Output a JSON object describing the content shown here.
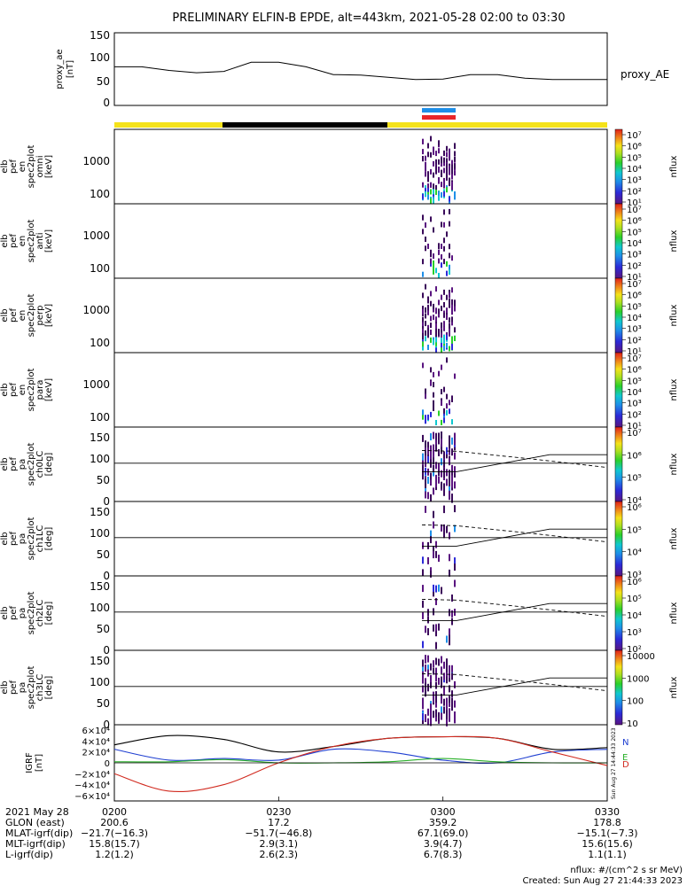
{
  "title": "PRELIMINARY ELFIN-B EPDE, alt=443km, 2021-05-28 02:00 to 03:30",
  "time_ticks": [
    "0200",
    "0230",
    "0300",
    "0330"
  ],
  "panels": {
    "ae": {
      "ylabel": [
        "proxy_ae",
        "[nT]"
      ],
      "legend": "proxy_AE",
      "yticks": [
        "150",
        "100",
        "50",
        "0"
      ]
    },
    "en_omni": {
      "ylabel": [
        "elb",
        "pef",
        "en",
        "spec2plot",
        "omni",
        "[keV]"
      ],
      "yticks": [
        "1000",
        "100"
      ]
    },
    "en_anti": {
      "ylabel": [
        "elb",
        "pef",
        "en",
        "spec2plot",
        "anti",
        "[keV]"
      ],
      "yticks": [
        "1000",
        "100"
      ]
    },
    "en_perp": {
      "ylabel": [
        "elb",
        "pef",
        "en",
        "spec2plot",
        "perp",
        "[keV]"
      ],
      "yticks": [
        "1000",
        "100"
      ]
    },
    "en_para": {
      "ylabel": [
        "elb",
        "pef",
        "en",
        "spec2plot",
        "para",
        "[keV]"
      ],
      "yticks": [
        "1000",
        "100"
      ]
    },
    "pa_ch0": {
      "ylabel": [
        "elb",
        "pef",
        "pa",
        "spec2plot",
        "ch0LC",
        "[deg]"
      ],
      "yticks": [
        "150",
        "100",
        "50",
        "0"
      ]
    },
    "pa_ch1": {
      "ylabel": [
        "elb",
        "pef",
        "pa",
        "spec2plot",
        "ch1LC",
        "[deg]"
      ],
      "yticks": [
        "150",
        "100",
        "50",
        "0"
      ]
    },
    "pa_ch2": {
      "ylabel": [
        "elb",
        "pef",
        "pa",
        "spec2plot",
        "ch2LC",
        "[deg]"
      ],
      "yticks": [
        "150",
        "100",
        "50",
        "0"
      ]
    },
    "pa_ch3": {
      "ylabel": [
        "elb",
        "pef",
        "pa",
        "spec2plot",
        "ch3LC",
        "[deg]"
      ],
      "yticks": [
        "150",
        "100",
        "50",
        "0"
      ]
    },
    "igrf": {
      "ylabel": [
        "IGRF",
        "[nT]"
      ],
      "yticks": [
        "6×10⁴",
        "4×10⁴",
        "2×10⁴",
        "0",
        "−2×10⁴",
        "−4×10⁴",
        "−6×10⁴"
      ],
      "legend": [
        "N",
        "E",
        "D"
      ],
      "stamp": "Sun Aug 27 14:44:33 2023"
    }
  },
  "colorbars": {
    "omni": {
      "label": "nflux",
      "ticks": [
        "10⁷",
        "10⁶",
        "10⁵",
        "10⁴",
        "10³",
        "10²",
        "10¹"
      ]
    },
    "anti": {
      "label": "nflux",
      "ticks": [
        "10⁷",
        "10⁶",
        "10⁵",
        "10⁴",
        "10³",
        "10²",
        "10¹"
      ]
    },
    "perp": {
      "label": "nflux",
      "ticks": [
        "10⁷",
        "10⁶",
        "10⁵",
        "10⁴",
        "10³",
        "10²",
        "10¹"
      ]
    },
    "para": {
      "label": "nflux",
      "ticks": [
        "10⁷",
        "10⁶",
        "10⁵",
        "10⁴",
        "10³",
        "10²",
        "10¹"
      ]
    },
    "ch0": {
      "label": "nflux",
      "ticks": [
        "10⁷",
        "10⁶",
        "10⁵",
        "10⁴"
      ]
    },
    "ch1": {
      "label": "nflux",
      "ticks": [
        "10⁶",
        "10⁵",
        "10⁴",
        "10³"
      ]
    },
    "ch2": {
      "label": "nflux",
      "ticks": [
        "10⁶",
        "10⁵",
        "10⁴",
        "10³",
        "10²"
      ]
    },
    "ch3": {
      "label": "nflux",
      "ticks": [
        "10000",
        "1000",
        "100",
        "10"
      ]
    }
  },
  "footer": {
    "rows": [
      {
        "label": "2021 May 28",
        "values": [
          "0200",
          "0230",
          "0300",
          "0330"
        ]
      },
      {
        "label": "GLON (east)",
        "values": [
          "200.6",
          "17.2",
          "359.2",
          "178.8"
        ]
      },
      {
        "label": "MLAT-igrf(dip)",
        "values": [
          "−21.7(−16.3)",
          "−51.7(−46.8)",
          "67.1(69.0)",
          "−15.1(−7.3)"
        ]
      },
      {
        "label": "MLT-igrf(dip)",
        "values": [
          "15.8(15.7)",
          "2.9(3.1)",
          "3.9(4.7)",
          "15.6(15.6)"
        ]
      },
      {
        "label": "L-igrf(dip)",
        "values": [
          "1.2(1.2)",
          "2.6(2.3)",
          "6.7(8.3)",
          "1.1(1.1)"
        ]
      }
    ],
    "units": "nflux: #/(cm^2 s sr MeV)",
    "created": "Created: Sun Aug 27 21:44:33 2023"
  },
  "colors": {
    "yellow_bar": "#f5e21a",
    "black_bar": "#000000",
    "blue_bar": "#1e8fe8",
    "red_bar": "#e8262a",
    "N": "#1f3fd1",
    "E": "#2ab02a",
    "D": "#d12a1f",
    "total": "#000000"
  },
  "chart_data": {
    "type": "line",
    "title": "PRELIMINARY ELFIN-B EPDE, alt=443km, 2021-05-28 02:00 to 03:30",
    "x_range": [
      "02:00",
      "03:30"
    ],
    "series": [
      {
        "name": "proxy_AE",
        "x": [
          "02:00",
          "02:05",
          "02:10",
          "02:15",
          "02:20",
          "02:25",
          "02:30",
          "02:35",
          "02:40",
          "02:45",
          "02:50",
          "02:55",
          "03:00",
          "03:05",
          "03:10",
          "03:15",
          "03:20",
          "03:25",
          "03:30"
        ],
        "values": [
          85,
          85,
          77,
          72,
          75,
          95,
          95,
          85,
          68,
          67,
          62,
          57,
          58,
          68,
          68,
          60,
          57,
          57,
          57
        ]
      }
    ],
    "igrf": {
      "x": [
        "02:00",
        "02:10",
        "02:20",
        "02:30",
        "02:40",
        "02:50",
        "03:00",
        "03:10",
        "03:20",
        "03:30"
      ],
      "N": [
        25000,
        5000,
        8000,
        5000,
        25000,
        20000,
        5000,
        0,
        20000,
        25000
      ],
      "E": [
        2000,
        2000,
        6000,
        0,
        0,
        2000,
        8000,
        2000,
        0,
        0
      ],
      "D": [
        -20000,
        -52000,
        -40000,
        0,
        30000,
        45000,
        48000,
        45000,
        20000,
        -5000
      ],
      "total": [
        33000,
        50000,
        43000,
        20000,
        30000,
        45000,
        48000,
        45000,
        25000,
        28000
      ]
    }
  }
}
